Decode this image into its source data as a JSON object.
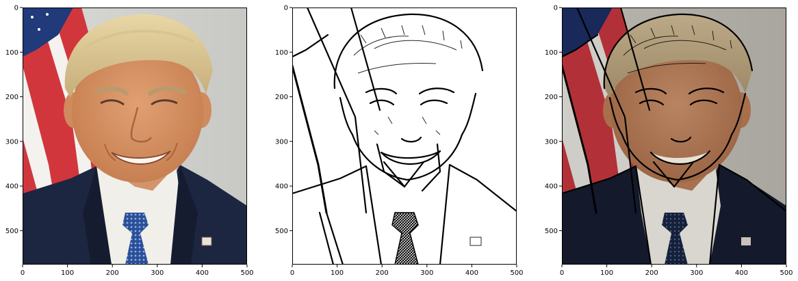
{
  "chart_data": [
    {
      "type": "image",
      "title": "",
      "xlabel": "",
      "ylabel": "",
      "content": "original photo",
      "xlim": [
        0,
        500
      ],
      "ylim": [
        576,
        0
      ],
      "xticks": [
        0,
        100,
        200,
        300,
        400,
        500
      ],
      "yticks": [
        0,
        100,
        200,
        300,
        400,
        500
      ],
      "grid": false
    },
    {
      "type": "image",
      "title": "",
      "xlabel": "",
      "ylabel": "",
      "content": "edge map (black lines on white)",
      "xlim": [
        0,
        500
      ],
      "ylim": [
        576,
        0
      ],
      "xticks": [
        0,
        100,
        200,
        300,
        400,
        500
      ],
      "yticks": [
        0,
        100,
        200,
        300,
        400,
        500
      ],
      "grid": false
    },
    {
      "type": "image",
      "title": "",
      "xlabel": "",
      "ylabel": "",
      "content": "photo with edge overlay (cartoon effect)",
      "xlim": [
        0,
        500
      ],
      "ylim": [
        576,
        0
      ],
      "xticks": [
        0,
        100,
        200,
        300,
        400,
        500
      ],
      "yticks": [
        0,
        100,
        200,
        300,
        400,
        500
      ],
      "grid": false
    }
  ]
}
